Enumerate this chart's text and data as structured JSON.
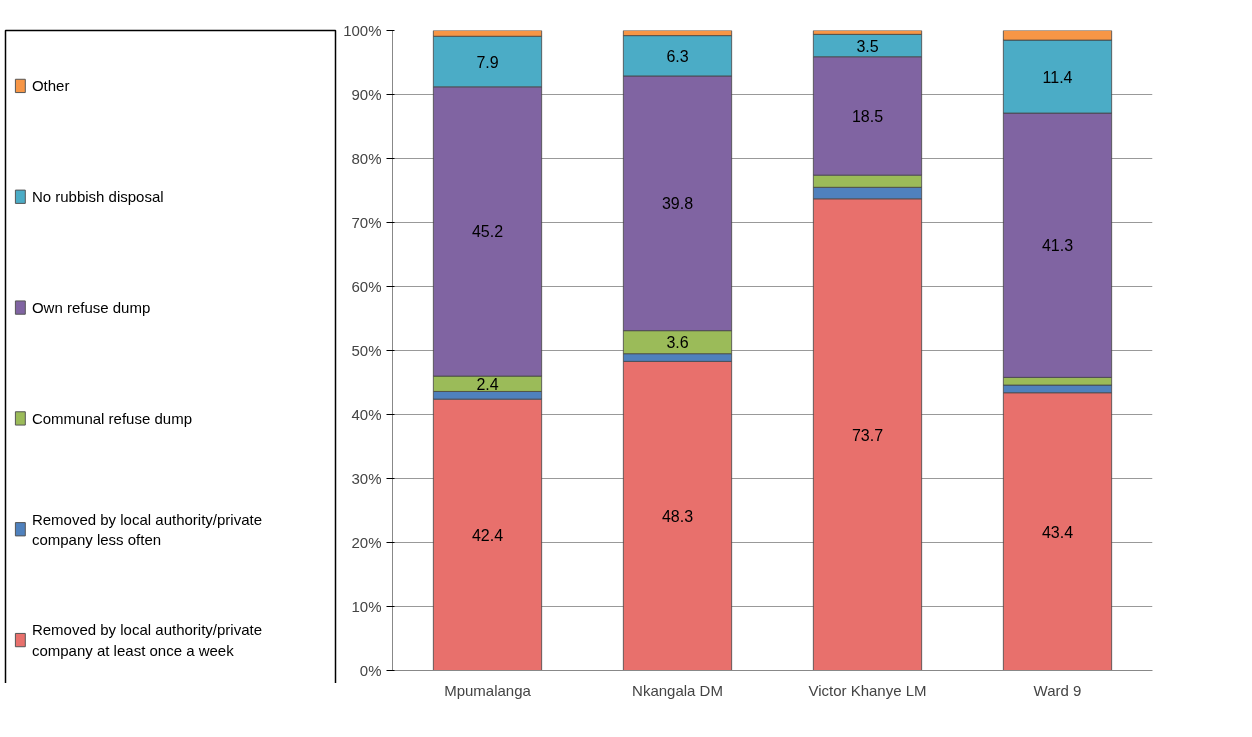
{
  "chart_data": {
    "type": "bar",
    "stacked": true,
    "categories": [
      "Mpumalanga",
      "Nkangala DM",
      "Victor Khanye LM",
      "Ward 9"
    ],
    "series": [
      {
        "name": "Removed by local authority/private company at least once a week",
        "color": "#e8706c",
        "values": [
          42.4,
          48.3,
          73.7,
          43.4
        ],
        "value_labels": [
          "42.4",
          "48.3",
          "73.7",
          "43.4"
        ]
      },
      {
        "name": "Removed by local authority/private company less often",
        "color": "#4f81bd",
        "values": [
          1.2,
          1.2,
          1.8,
          1.2
        ],
        "value_labels": [
          null,
          null,
          null,
          null
        ]
      },
      {
        "name": "Communal refuse dump",
        "color": "#9bbb59",
        "values": [
          2.4,
          3.6,
          1.9,
          1.2
        ],
        "value_labels": [
          "2.4",
          "3.6",
          null,
          null
        ]
      },
      {
        "name": "Own refuse dump",
        "color": "#8064a2",
        "values": [
          45.2,
          39.8,
          18.5,
          41.3
        ],
        "value_labels": [
          "45.2",
          "39.8",
          "18.5",
          "41.3"
        ]
      },
      {
        "name": "No rubbish disposal",
        "color": "#4bacc6",
        "values": [
          7.9,
          6.3,
          3.5,
          11.4
        ],
        "value_labels": [
          "7.9",
          "6.3",
          "3.5",
          "11.4"
        ]
      },
      {
        "name": "Other",
        "color": "#f79646",
        "values": [
          0.9,
          0.8,
          0.6,
          1.5
        ],
        "value_labels": [
          null,
          null,
          null,
          null
        ]
      }
    ],
    "ylim": [
      0,
      100
    ],
    "yticks": [
      {
        "value": 0,
        "label": "0%"
      },
      {
        "value": 10,
        "label": "10%"
      },
      {
        "value": 20,
        "label": "20%"
      },
      {
        "value": 30,
        "label": "30%"
      },
      {
        "value": 40,
        "label": "40%"
      },
      {
        "value": 50,
        "label": "50%"
      },
      {
        "value": 60,
        "label": "60%"
      },
      {
        "value": 70,
        "label": "70%"
      },
      {
        "value": 80,
        "label": "80%"
      },
      {
        "value": 90,
        "label": "90%"
      },
      {
        "value": 100,
        "label": "100%"
      }
    ],
    "grid": "y",
    "legend": "left"
  }
}
